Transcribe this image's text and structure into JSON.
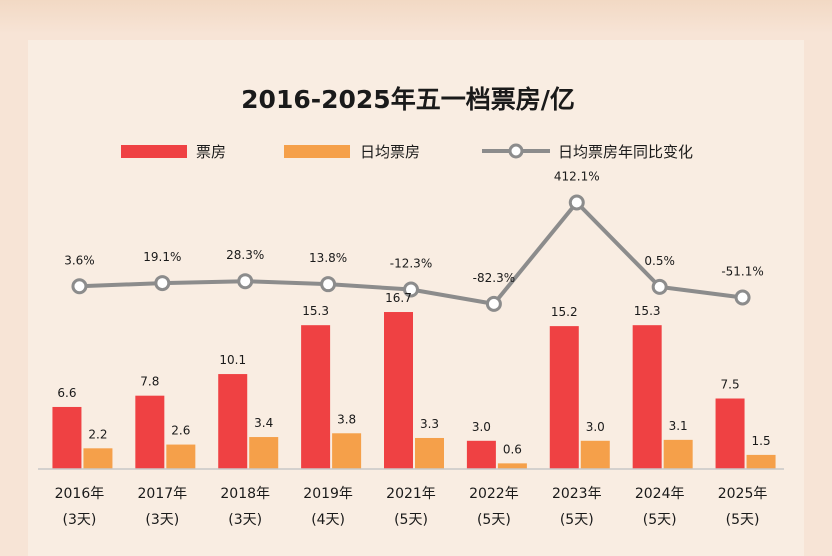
{
  "chart_data": {
    "type": "bar",
    "title": "2016-2025年五一档票房/亿",
    "categories": [
      [
        "2016年",
        "(3天)"
      ],
      [
        "2017年",
        "(3天)"
      ],
      [
        "2018年",
        "(3天)"
      ],
      [
        "2019年",
        "(4天)"
      ],
      [
        "2021年",
        "(5天)"
      ],
      [
        "2022年",
        "(5天)"
      ],
      [
        "2023年",
        "(5天)"
      ],
      [
        "2024年",
        "(5天)"
      ],
      [
        "2025年",
        "(5天)"
      ]
    ],
    "series": [
      {
        "name": "票房",
        "type": "bar",
        "color": "#ef4143",
        "values": [
          6.6,
          7.8,
          10.1,
          15.3,
          16.7,
          3.0,
          15.2,
          15.3,
          7.5
        ],
        "labels": [
          "6.6",
          "7.8",
          "10.1",
          "15.3",
          "16.7",
          "3.0",
          "15.2",
          "15.3",
          "7.5"
        ]
      },
      {
        "name": "日均票房",
        "type": "bar",
        "color": "#f5a04a",
        "values": [
          2.2,
          2.6,
          3.4,
          3.8,
          3.3,
          0.6,
          3.0,
          3.1,
          1.5
        ],
        "labels": [
          "2.2",
          "2.6",
          "3.4",
          "3.8",
          "3.3",
          "0.6",
          "3.0",
          "3.1",
          "1.5"
        ]
      },
      {
        "name": "日均票房年同比变化",
        "type": "line",
        "color": "#8c8c8c",
        "values": [
          3.6,
          19.1,
          28.3,
          13.8,
          -12.3,
          -82.3,
          412.1,
          0.5,
          -51.1
        ],
        "labels": [
          "3.6%",
          "19.1%",
          "28.3%",
          "13.8%",
          "-12.3%",
          "-82.3%",
          "412.1%",
          "0.5%",
          "-51.1%"
        ]
      }
    ],
    "legend_position": "top",
    "grid": false
  }
}
